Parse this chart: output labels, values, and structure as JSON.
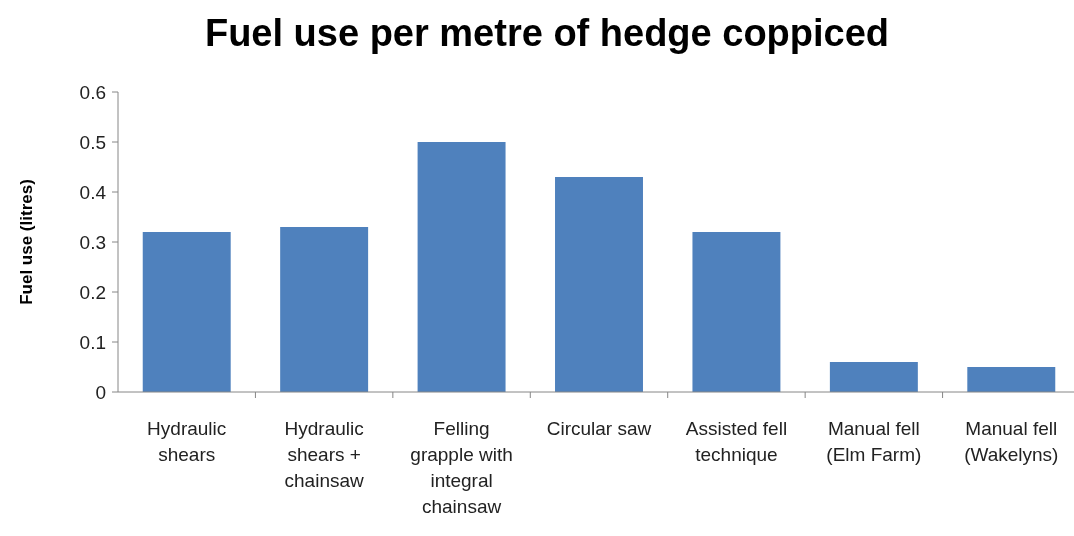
{
  "chart_data": {
    "type": "bar",
    "title": "Fuel use per metre of hedge coppiced",
    "ylabel": "Fuel use (litres)",
    "categories": [
      "Hydraulic shears",
      "Hydraulic shears + chainsaw",
      "Felling grapple with integral chainsaw",
      "Circular saw",
      "Assisted fell technique",
      "Manual fell (Elm Farm)",
      "Manual fell (Wakelyns)"
    ],
    "values": [
      0.32,
      0.33,
      0.5,
      0.43,
      0.32,
      0.06,
      0.05
    ],
    "color": "#4f81bd",
    "ylim": [
      0,
      0.6
    ],
    "yticks": [
      0,
      0.1,
      0.2,
      0.3,
      0.4,
      0.5,
      0.6
    ],
    "grid": false
  }
}
